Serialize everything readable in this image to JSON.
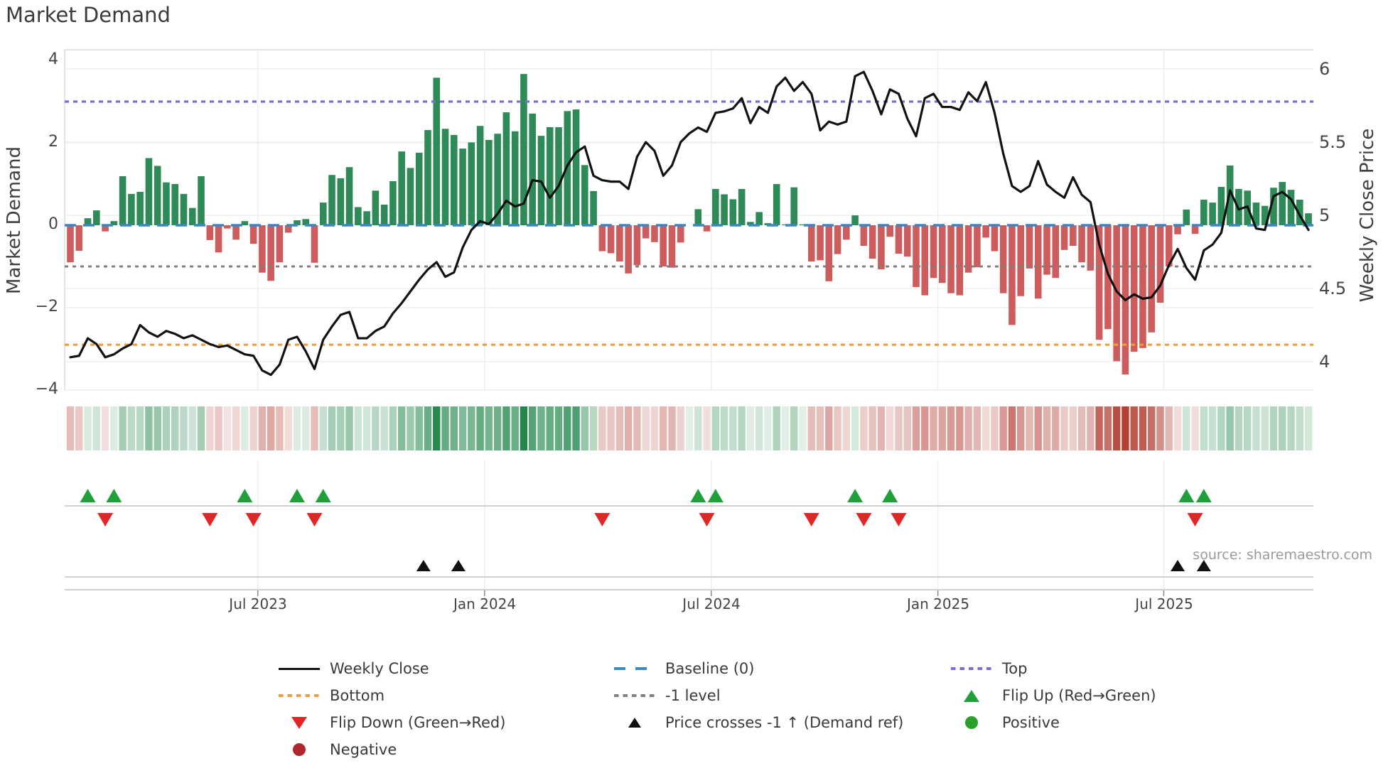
{
  "title": "Market Demand",
  "source": "source: sharemaestro.com",
  "axes": {
    "left_label": "Market Demand",
    "right_label": "Weekly Close Price",
    "left_ticks": [
      "4",
      "2",
      "0",
      "−2",
      "−4"
    ],
    "left_tick_values": [
      4,
      2,
      0,
      -2,
      -4
    ],
    "right_ticks": [
      "6",
      "5.5",
      "5",
      "4.5",
      "4"
    ],
    "right_tick_values": [
      6,
      5.5,
      5,
      4.5,
      4
    ],
    "x_ticks": [
      "Jul 2023",
      "Jan 2024",
      "Jul 2024",
      "Jan 2025",
      "Jul 2025"
    ],
    "x_tick_weeks": [
      21.5,
      47.5,
      73.5,
      99.5,
      125.4
    ]
  },
  "legend": {
    "weekly_close": "Weekly Close",
    "baseline": "Baseline (0)",
    "top": "Top",
    "bottom": "Bottom",
    "minus1": "-1 level",
    "flip_up": "Flip Up (Red→Green)",
    "flip_down": "Flip Down (Green→Red)",
    "price_cross": "Price crosses -1 ↑ (Demand ref)",
    "positive": "Positive",
    "negative": "Negative"
  },
  "colors": {
    "bar_positive": "#2e8b57",
    "bar_negative": "#cd5c5c",
    "price_line": "#111111",
    "baseline": "#3a87c8",
    "top_line": "#7a6ed8",
    "bottom_line": "#f09c38",
    "minus1_line": "#7f7f7f",
    "flip_up": "#1fa03a",
    "flip_down": "#df2727",
    "price_cross": "#111111",
    "heat_green": "#208648",
    "heat_red": "#b23c30",
    "grid": "#ececf1",
    "spine": "#d9d9de",
    "panel_line": "#cfcfd4"
  },
  "chart_data": {
    "type": "composite",
    "n_weeks": 143,
    "x_axis": {
      "unit": "week",
      "tick_labels": [
        "Jul 2023",
        "Jan 2024",
        "Jul 2024",
        "Jan 2025",
        "Jul 2025"
      ],
      "tick_week_indices": [
        21.5,
        47.5,
        73.5,
        99.5,
        125.4
      ]
    },
    "left_axis": {
      "label": "Market Demand",
      "range": [
        -4,
        4
      ],
      "ticks": [
        4,
        2,
        0,
        -2,
        -4
      ]
    },
    "right_axis": {
      "label": "Weekly Close Price",
      "range": [
        3.85,
        6.1
      ],
      "ticks": [
        6,
        5.5,
        5,
        4.5,
        4
      ]
    },
    "reference_lines": [
      {
        "name": "Top",
        "value": 3,
        "style": "dotted"
      },
      {
        "name": "Baseline (0)",
        "value": 0,
        "style": "dashed"
      },
      {
        "name": "-1 level",
        "value": -1,
        "style": "dotted"
      },
      {
        "name": "Bottom",
        "value": -2.9,
        "style": "dotted"
      }
    ],
    "series": [
      {
        "name": "Market Demand",
        "type": "bar",
        "axis": "left",
        "values": [
          -0.9,
          -0.62,
          0.17,
          0.36,
          -0.15,
          0.1,
          1.19,
          0.76,
          0.81,
          1.63,
          1.44,
          1.04,
          1.0,
          0.76,
          0.42,
          1.19,
          -0.36,
          -0.66,
          -0.08,
          -0.35,
          0.1,
          -0.45,
          -1.15,
          -1.35,
          -0.9,
          -0.18,
          0.12,
          0.15,
          -0.91,
          0.55,
          1.22,
          1.14,
          1.41,
          0.44,
          0.34,
          0.84,
          0.5,
          1.07,
          1.79,
          1.39,
          1.76,
          2.31,
          3.58,
          2.34,
          2.19,
          1.86,
          2.01,
          2.41,
          2.07,
          2.22,
          2.74,
          2.28,
          3.67,
          2.71,
          2.17,
          2.38,
          2.38,
          2.77,
          2.81,
          1.46,
          0.83,
          -0.63,
          -0.68,
          -0.88,
          -1.17,
          -0.97,
          -0.32,
          -0.41,
          -1.0,
          -1.03,
          -0.42,
          0.0,
          0.39,
          -0.15,
          0.88,
          0.75,
          0.63,
          0.88,
          0.08,
          0.32,
          0.05,
          1.0,
          0.02,
          0.92,
          0.02,
          -0.88,
          -0.85,
          -1.36,
          -0.7,
          -0.35,
          0.24,
          -0.5,
          -0.81,
          -1.07,
          -0.28,
          -0.69,
          -0.76,
          -1.5,
          -1.7,
          -1.28,
          -1.4,
          -1.65,
          -1.7,
          -1.15,
          -1.02,
          -0.3,
          -0.63,
          -1.65,
          -2.42,
          -1.72,
          -1.05,
          -1.78,
          -1.2,
          -1.28,
          -0.6,
          -0.5,
          -0.9,
          -1.1,
          -2.78,
          -2.52,
          -3.3,
          -3.62,
          -3.07,
          -2.98,
          -2.6,
          -1.88,
          -1.0,
          -0.22,
          0.38,
          -0.21,
          0.62,
          0.55,
          0.93,
          1.45,
          0.88,
          0.84,
          0.55,
          0.47,
          0.91,
          1.05,
          0.86,
          0.62,
          0.29
        ]
      },
      {
        "name": "Weekly Close",
        "type": "line",
        "axis": "right",
        "values": [
          4.03,
          4.04,
          4.16,
          4.12,
          4.03,
          4.05,
          4.09,
          4.12,
          4.25,
          4.2,
          4.17,
          4.21,
          4.19,
          4.16,
          4.18,
          4.15,
          4.12,
          4.1,
          4.11,
          4.08,
          4.05,
          4.04,
          3.94,
          3.91,
          3.98,
          4.15,
          4.17,
          4.07,
          3.95,
          4.15,
          4.24,
          4.32,
          4.34,
          4.16,
          4.16,
          4.21,
          4.24,
          4.33,
          4.4,
          4.48,
          4.56,
          4.63,
          4.68,
          4.58,
          4.61,
          4.78,
          4.9,
          4.96,
          4.94,
          5.01,
          5.1,
          5.06,
          5.08,
          5.24,
          5.23,
          5.12,
          5.2,
          5.34,
          5.43,
          5.47,
          5.27,
          5.24,
          5.23,
          5.23,
          5.18,
          5.4,
          5.5,
          5.44,
          5.27,
          5.34,
          5.5,
          5.56,
          5.6,
          5.57,
          5.7,
          5.71,
          5.73,
          5.8,
          5.63,
          5.74,
          5.7,
          5.88,
          5.94,
          5.85,
          5.91,
          5.83,
          5.58,
          5.64,
          5.62,
          5.64,
          5.95,
          5.98,
          5.85,
          5.69,
          5.86,
          5.83,
          5.66,
          5.54,
          5.8,
          5.83,
          5.74,
          5.74,
          5.72,
          5.84,
          5.78,
          5.91,
          5.7,
          5.42,
          5.2,
          5.16,
          5.2,
          5.37,
          5.21,
          5.16,
          5.12,
          5.26,
          5.14,
          5.09,
          4.8,
          4.6,
          4.48,
          4.42,
          4.46,
          4.43,
          4.44,
          4.52,
          4.66,
          4.77,
          4.64,
          4.56,
          4.76,
          4.8,
          4.88,
          5.17,
          5.04,
          5.06,
          4.91,
          4.9,
          5.13,
          5.16,
          5.11,
          5.0,
          4.9
        ]
      }
    ],
    "markers": {
      "flip_up_weeks": [
        2,
        5,
        20,
        26,
        29,
        72,
        74,
        90,
        94,
        128,
        130
      ],
      "flip_down_weeks": [
        4,
        16,
        21,
        28,
        61,
        73,
        85,
        91,
        95,
        129
      ],
      "price_cross_weeks": [
        40.5,
        44.5,
        127,
        130
      ]
    },
    "heatmap_strip": {
      "rows": 1,
      "cells": "one per week, color intensity follows Market Demand value (green positive, red negative)"
    }
  }
}
